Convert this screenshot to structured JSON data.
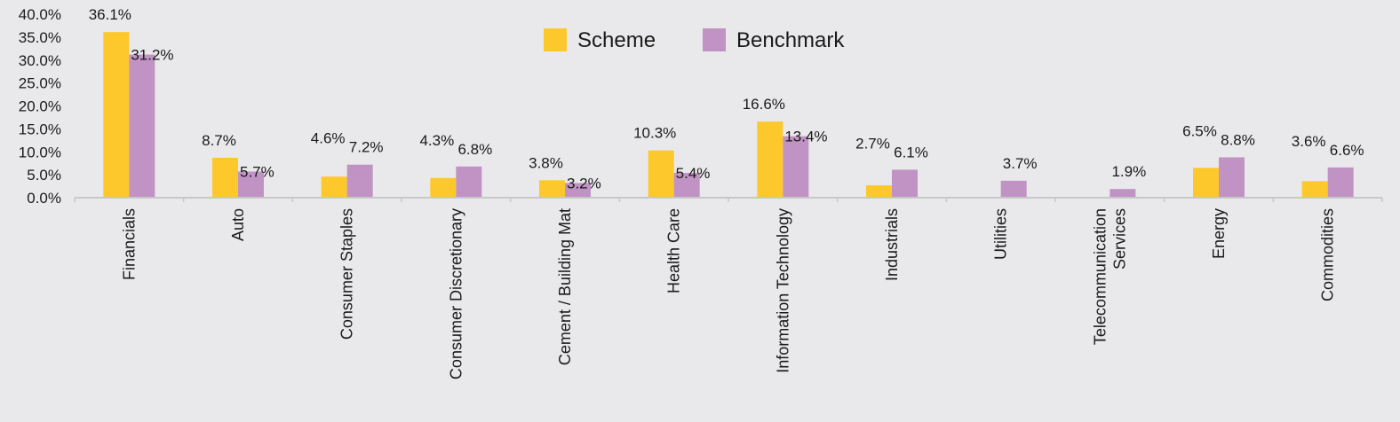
{
  "chart_data": {
    "type": "bar",
    "title": "",
    "xlabel": "",
    "ylabel": "",
    "ylim": [
      0,
      40
    ],
    "yticks": [
      "0.0%",
      "5.0%",
      "10.0%",
      "15.0%",
      "20.0%",
      "25.0%",
      "30.0%",
      "35.0%",
      "40.0%"
    ],
    "ytick_values": [
      0,
      5,
      10,
      15,
      20,
      25,
      30,
      35,
      40
    ],
    "grid": false,
    "legend_position": "top-center",
    "categories": [
      [
        "Financials"
      ],
      [
        "Auto"
      ],
      [
        "Consumer Staples"
      ],
      [
        "Consumer Discretionary"
      ],
      [
        "Cement / Building Mat"
      ],
      [
        "Health Care"
      ],
      [
        "Information Technology"
      ],
      [
        "Industrials"
      ],
      [
        "Utilities"
      ],
      [
        "Telecommunication",
        "Services"
      ],
      [
        "Energy"
      ],
      [
        "Commodities"
      ]
    ],
    "series": [
      {
        "name": "Scheme",
        "color": "#fdc82b",
        "values": [
          36.1,
          8.7,
          4.6,
          4.3,
          3.8,
          10.3,
          16.6,
          2.7,
          null,
          null,
          6.5,
          3.6
        ],
        "labels": [
          "36.1%",
          "8.7%",
          "4.6%",
          "4.3%",
          "3.8%",
          "10.3%",
          "16.6%",
          "2.7%",
          "",
          "",
          "6.5%",
          "3.6%"
        ]
      },
      {
        "name": "Benchmark",
        "color": "#c193c4",
        "values": [
          31.2,
          5.7,
          7.2,
          6.8,
          3.2,
          5.4,
          13.4,
          6.1,
          3.7,
          1.9,
          8.8,
          6.6
        ],
        "labels": [
          "31.2%",
          "5.7%",
          "7.2%",
          "6.8%",
          "3.2%",
          "5.4%",
          "13.4%",
          "6.1%",
          "3.7%",
          "1.9%",
          "8.8%",
          "6.6%"
        ]
      }
    ],
    "axis_color": "#c8c8c8"
  }
}
